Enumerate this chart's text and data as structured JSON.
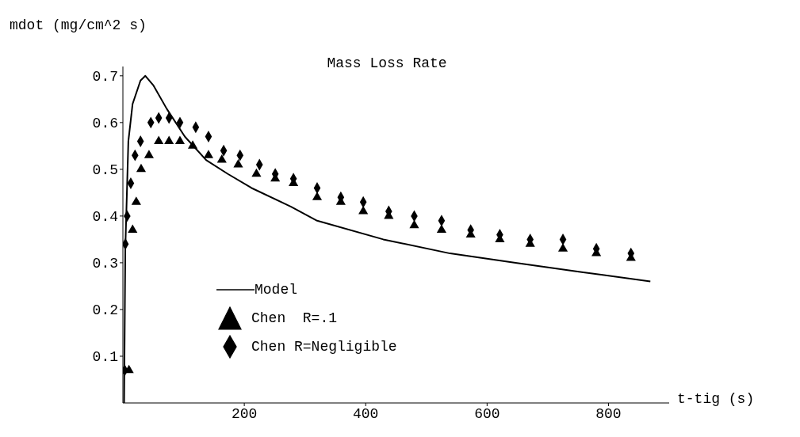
{
  "chart_data": {
    "type": "scatter",
    "title": "Mass Loss Rate",
    "xlabel": "t-tig (s)",
    "ylabel": "mdot (mg/cm^2 s)",
    "xlim": [
      0,
      900
    ],
    "xticks": [
      200,
      400,
      600,
      800
    ],
    "ylim": [
      0,
      0.72
    ],
    "yticks": [
      0.1,
      0.2,
      0.3,
      0.4,
      0.5,
      0.6,
      0.7
    ],
    "legend": "bottom left",
    "series": [
      {
        "name": "Model",
        "type": "line",
        "color": "#000000",
        "x": [
          2,
          4,
          9,
          16,
          29,
          37,
          50,
          72,
          102,
          137,
          173,
          212,
          277,
          320,
          429,
          539,
          647,
          756,
          869
        ],
        "values": [
          0.0,
          0.33,
          0.56,
          0.64,
          0.69,
          0.7,
          0.68,
          0.63,
          0.57,
          0.52,
          0.49,
          0.46,
          0.42,
          0.39,
          0.35,
          0.32,
          0.3,
          0.28,
          0.26
        ]
      },
      {
        "name": "Chen  R=.1",
        "marker": "triangle",
        "color": "#000000",
        "x": [
          10,
          16,
          22,
          30,
          43,
          59,
          76,
          94,
          115,
          141,
          163,
          190,
          220,
          251,
          281,
          320,
          359,
          396,
          438,
          480,
          525,
          573,
          621,
          671,
          725,
          780,
          837
        ],
        "values": [
          0.07,
          0.37,
          0.43,
          0.5,
          0.53,
          0.56,
          0.56,
          0.56,
          0.55,
          0.53,
          0.52,
          0.51,
          0.49,
          0.48,
          0.47,
          0.44,
          0.43,
          0.41,
          0.4,
          0.38,
          0.37,
          0.36,
          0.35,
          0.34,
          0.33,
          0.32,
          0.31
        ]
      },
      {
        "name": "Chen R=Negligible",
        "marker": "diamond",
        "color": "#000000",
        "x": [
          3,
          4,
          7,
          13,
          20,
          29,
          46,
          59,
          76,
          94,
          120,
          141,
          166,
          193,
          225,
          251,
          281,
          320,
          359,
          396,
          438,
          480,
          525,
          573,
          621,
          671,
          725,
          780,
          837
        ],
        "values": [
          0.07,
          0.34,
          0.4,
          0.47,
          0.53,
          0.56,
          0.6,
          0.61,
          0.61,
          0.6,
          0.59,
          0.57,
          0.54,
          0.53,
          0.51,
          0.49,
          0.48,
          0.46,
          0.44,
          0.43,
          0.41,
          0.4,
          0.39,
          0.37,
          0.36,
          0.35,
          0.35,
          0.33,
          0.32
        ]
      }
    ]
  }
}
